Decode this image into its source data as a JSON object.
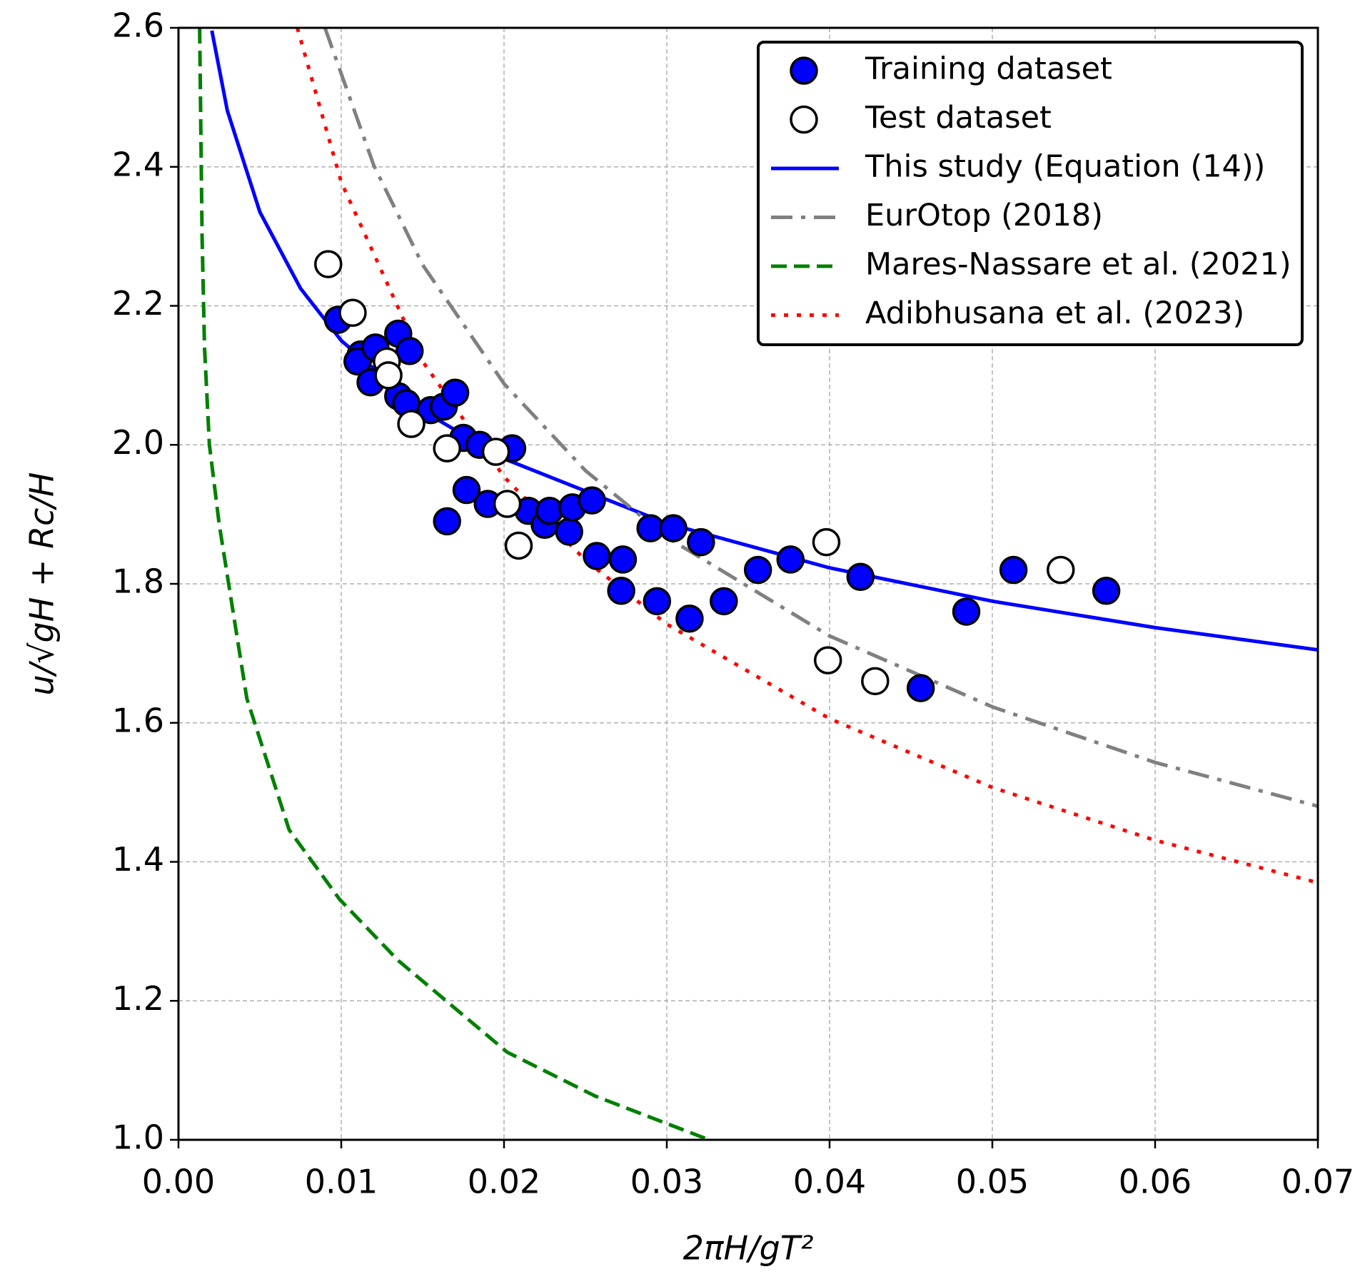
{
  "chart_data": {
    "type": "scatter",
    "xlabel": "2πH/gT²",
    "ylabel": "u/√gH + Rc/H",
    "xlim": [
      0,
      0.07
    ],
    "ylim": [
      1.0,
      2.6
    ],
    "xticks": [
      {
        "value": 0,
        "label": "0.00"
      },
      0.01,
      0.02,
      0.03,
      0.04,
      0.05,
      0.06,
      0.07
    ],
    "yticks": [
      {
        "value": 1.0,
        "label": "1.0"
      },
      1.2,
      1.4,
      1.6,
      1.8,
      {
        "value": 2.0,
        "label": "2.0"
      },
      2.2,
      2.4,
      2.6
    ],
    "grid": true,
    "legend": "upper right",
    "series": [
      {
        "name": "Training dataset",
        "type": "scatter",
        "color": "#0000ff",
        "x": [
          0.0098,
          0.0112,
          0.011,
          0.0121,
          0.0118,
          0.0135,
          0.0142,
          0.0135,
          0.014,
          0.0155,
          0.0163,
          0.017,
          0.0175,
          0.0185,
          0.0205,
          0.0165,
          0.0177,
          0.019,
          0.0215,
          0.0225,
          0.0228,
          0.024,
          0.0242,
          0.0254,
          0.0257,
          0.0273,
          0.0272,
          0.029,
          0.0304,
          0.0294,
          0.0314,
          0.0321,
          0.0335,
          0.0356,
          0.0376,
          0.0419,
          0.0484,
          0.0456,
          0.0513,
          0.057
        ],
        "values": [
          2.18,
          2.13,
          2.12,
          2.14,
          2.09,
          2.16,
          2.135,
          2.07,
          2.06,
          2.05,
          2.055,
          2.075,
          2.01,
          2.0,
          1.995,
          1.89,
          1.935,
          1.915,
          1.905,
          1.885,
          1.905,
          1.875,
          1.91,
          1.92,
          1.84,
          1.835,
          1.79,
          1.88,
          1.88,
          1.775,
          1.75,
          1.86,
          1.775,
          1.82,
          1.835,
          1.81,
          1.76,
          1.65,
          1.82,
          1.79
        ]
      },
      {
        "name": "Test dataset",
        "type": "scatter",
        "color": "#ffffff",
        "x": [
          0.0092,
          0.0107,
          0.0128,
          0.0129,
          0.0143,
          0.0165,
          0.0195,
          0.0202,
          0.0209,
          0.0398,
          0.0399,
          0.0428,
          0.0542
        ],
        "values": [
          2.26,
          2.19,
          2.12,
          2.1,
          2.03,
          1.995,
          1.99,
          1.915,
          1.855,
          1.86,
          1.69,
          1.66,
          1.82
        ]
      },
      {
        "name": "This study (Equation (14))",
        "type": "line",
        "color": "#0000ff",
        "dash": "solid",
        "x": [
          0.00205,
          0.003,
          0.005,
          0.0075,
          0.01,
          0.015,
          0.02,
          0.03,
          0.04,
          0.05,
          0.06,
          0.07
        ],
        "values": [
          2.596,
          2.481,
          2.335,
          2.225,
          2.15,
          2.049,
          1.98,
          1.887,
          1.823,
          1.775,
          1.737,
          1.705
        ]
      },
      {
        "name": "EurOtop (2018)",
        "type": "line",
        "color": "#808080",
        "dash": "dashdot",
        "x": [
          0.009,
          0.012,
          0.015,
          0.02,
          0.025,
          0.03,
          0.04,
          0.05,
          0.06,
          0.07
        ],
        "values": [
          2.6,
          2.402,
          2.259,
          2.088,
          1.963,
          1.867,
          1.725,
          1.623,
          1.543,
          1.48
        ]
      },
      {
        "name": "Mares-Nassare et al. (2021)",
        "type": "line",
        "color": "#008000",
        "dash": "dashed",
        "x": [
          0.0013,
          0.00145,
          0.0016,
          0.0019,
          0.0025,
          0.0042,
          0.0068,
          0.0099,
          0.0135,
          0.0202,
          0.0256,
          0.0326
        ],
        "values": [
          2.6,
          2.3,
          2.14,
          2.0,
          1.886,
          1.635,
          1.446,
          1.346,
          1.258,
          1.126,
          1.063,
          1.0
        ]
      },
      {
        "name": "Adibhusana et al. (2023)",
        "type": "line",
        "color": "#ff0000",
        "dash": "dotted",
        "x": [
          0.0073,
          0.01,
          0.015,
          0.02,
          0.025,
          0.03,
          0.04,
          0.05,
          0.06,
          0.07
        ],
        "values": [
          2.6,
          2.378,
          2.12,
          1.954,
          1.834,
          1.742,
          1.606,
          1.507,
          1.431,
          1.37
        ]
      }
    ]
  }
}
